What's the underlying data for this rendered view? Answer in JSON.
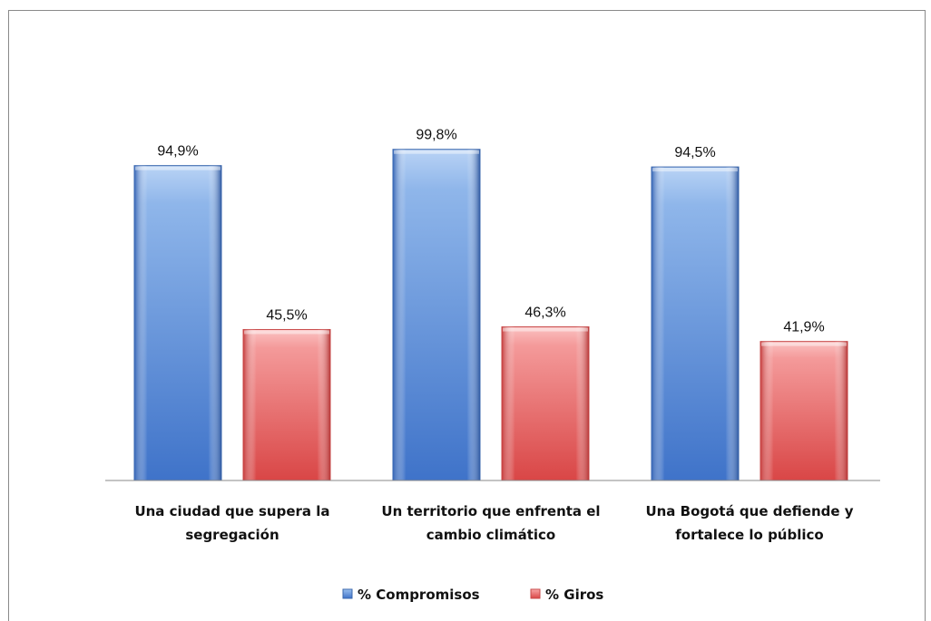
{
  "chart_data": {
    "type": "bar",
    "categories": [
      [
        "Una ciudad que supera la",
        "segregación"
      ],
      [
        "Un territorio que enfrenta el",
        "cambio climático"
      ],
      [
        "Una Bogotá que defiende y",
        "fortalece lo público"
      ]
    ],
    "series": [
      {
        "name": "% Compromisos",
        "values": [
          94.9,
          99.8,
          94.5
        ],
        "labels": [
          "94,9%",
          "99,8%",
          "94,5%"
        ],
        "color": "#4f81bd"
      },
      {
        "name": "% Giros",
        "values": [
          45.5,
          46.3,
          41.9
        ],
        "labels": [
          "45,5%",
          "46,3%",
          "41,9%"
        ],
        "color": "#e05a5a"
      }
    ],
    "ylim": [
      0,
      100
    ],
    "grid": false,
    "legend_position": "bottom",
    "title": "",
    "xlabel": "",
    "ylabel": ""
  }
}
